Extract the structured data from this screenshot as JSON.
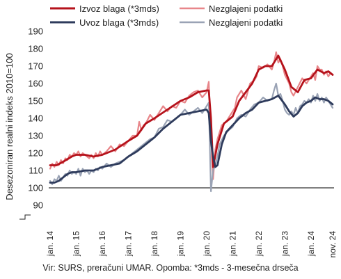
{
  "chart_data": {
    "type": "line",
    "ylabel": "Desezoniran realni indeks 2010=100",
    "ylim": [
      80,
      190
    ],
    "yticks": [
      90,
      100,
      110,
      120,
      130,
      140,
      150,
      160,
      170,
      180,
      190
    ],
    "x_tick_labels": [
      "jan. 14",
      "jan. 15",
      "jan. 16",
      "jan. 17",
      "jan. 18",
      "jan. 19",
      "jan. 20",
      "jan. 21",
      "jan. 22",
      "jan. 23",
      "jan. 24",
      "nov. 24"
    ],
    "x_tick_months": [
      0,
      12,
      24,
      36,
      48,
      60,
      72,
      84,
      96,
      108,
      120,
      130
    ],
    "reference_line": 100,
    "legend_position": "top",
    "colors": {
      "export_3mds": "#b5121b",
      "export_raw": "#e8868a",
      "import_3mds": "#2e3b5c",
      "import_raw": "#9aa3b5",
      "reference": "#000000"
    },
    "series": [
      {
        "name": "Izvoz blaga (*3mds)",
        "key": "export_3mds",
        "anchors": [
          [
            0,
            113
          ],
          [
            3,
            113
          ],
          [
            6,
            115
          ],
          [
            10,
            118
          ],
          [
            12,
            119
          ],
          [
            16,
            119
          ],
          [
            20,
            118
          ],
          [
            24,
            119
          ],
          [
            30,
            122
          ],
          [
            36,
            127
          ],
          [
            40,
            130
          ],
          [
            44,
            137
          ],
          [
            48,
            140
          ],
          [
            54,
            145
          ],
          [
            60,
            150
          ],
          [
            64,
            152
          ],
          [
            68,
            155
          ],
          [
            72,
            156
          ],
          [
            73,
            156
          ],
          [
            74,
            140
          ],
          [
            75,
            112
          ],
          [
            77,
            125
          ],
          [
            80,
            137
          ],
          [
            84,
            141
          ],
          [
            87,
            150
          ],
          [
            90,
            155
          ],
          [
            93,
            160
          ],
          [
            96,
            168
          ],
          [
            99,
            170
          ],
          [
            102,
            170
          ],
          [
            105,
            176
          ],
          [
            108,
            168
          ],
          [
            111,
            158
          ],
          [
            114,
            155
          ],
          [
            117,
            162
          ],
          [
            120,
            163
          ],
          [
            123,
            168
          ],
          [
            126,
            166
          ],
          [
            128,
            167
          ],
          [
            130,
            165
          ]
        ]
      },
      {
        "name": "Nezglajeni podatki",
        "key": "export_raw",
        "anchors": [
          [
            0,
            111
          ],
          [
            1,
            114
          ],
          [
            2,
            112
          ],
          [
            3,
            115
          ],
          [
            4,
            113
          ],
          [
            5,
            116
          ],
          [
            6,
            114
          ],
          [
            7,
            117
          ],
          [
            8,
            116
          ],
          [
            9,
            119
          ],
          [
            10,
            118
          ],
          [
            11,
            120
          ],
          [
            12,
            119
          ],
          [
            13,
            121
          ],
          [
            14,
            118
          ],
          [
            15,
            120
          ],
          [
            16,
            119
          ],
          [
            17,
            118
          ],
          [
            18,
            117
          ],
          [
            19,
            119
          ],
          [
            20,
            117
          ],
          [
            21,
            120
          ],
          [
            22,
            118
          ],
          [
            23,
            121
          ],
          [
            24,
            119
          ],
          [
            26,
            121
          ],
          [
            28,
            124
          ],
          [
            30,
            121
          ],
          [
            32,
            125
          ],
          [
            34,
            124
          ],
          [
            36,
            127
          ],
          [
            38,
            130
          ],
          [
            40,
            130
          ],
          [
            41,
            138
          ],
          [
            42,
            133
          ],
          [
            43,
            136
          ],
          [
            44,
            137
          ],
          [
            46,
            142
          ],
          [
            48,
            139
          ],
          [
            50,
            143
          ],
          [
            52,
            147
          ],
          [
            54,
            144
          ],
          [
            56,
            147
          ],
          [
            58,
            146
          ],
          [
            60,
            150
          ],
          [
            62,
            149
          ],
          [
            64,
            153
          ],
          [
            66,
            155
          ],
          [
            68,
            156
          ],
          [
            70,
            152
          ],
          [
            72,
            155
          ],
          [
            73,
            161
          ],
          [
            74,
            130
          ],
          [
            75,
            105
          ],
          [
            76,
            122
          ],
          [
            77,
            128
          ],
          [
            79,
            136
          ],
          [
            81,
            138
          ],
          [
            83,
            142
          ],
          [
            85,
            146
          ],
          [
            86,
            152
          ],
          [
            88,
            156
          ],
          [
            90,
            151
          ],
          [
            92,
            160
          ],
          [
            94,
            162
          ],
          [
            95,
            164
          ],
          [
            96,
            170
          ],
          [
            98,
            169
          ],
          [
            100,
            171
          ],
          [
            102,
            168
          ],
          [
            103,
            172
          ],
          [
            104,
            178
          ],
          [
            105,
            172
          ],
          [
            106,
            174
          ],
          [
            107,
            170
          ],
          [
            108,
            165
          ],
          [
            110,
            160
          ],
          [
            111,
            155
          ],
          [
            112,
            153
          ],
          [
            114,
            158
          ],
          [
            116,
            163
          ],
          [
            118,
            160
          ],
          [
            120,
            164
          ],
          [
            121,
            166
          ],
          [
            122,
            162
          ],
          [
            123,
            170
          ],
          [
            124,
            168
          ],
          [
            125,
            168
          ],
          [
            126,
            165
          ],
          [
            127,
            167
          ],
          [
            128,
            164
          ],
          [
            129,
            166
          ],
          [
            130,
            165
          ]
        ]
      },
      {
        "name": "Uvoz blaga (*3mds)",
        "key": "import_3mds",
        "anchors": [
          [
            0,
            103
          ],
          [
            2,
            103
          ],
          [
            4,
            104
          ],
          [
            6,
            106
          ],
          [
            8,
            108
          ],
          [
            10,
            109
          ],
          [
            12,
            109
          ],
          [
            16,
            110
          ],
          [
            20,
            110
          ],
          [
            24,
            112
          ],
          [
            28,
            113
          ],
          [
            32,
            114
          ],
          [
            36,
            118
          ],
          [
            40,
            121
          ],
          [
            44,
            125
          ],
          [
            48,
            129
          ],
          [
            52,
            134
          ],
          [
            56,
            138
          ],
          [
            60,
            142
          ],
          [
            64,
            143
          ],
          [
            68,
            144
          ],
          [
            72,
            145
          ],
          [
            73,
            143
          ],
          [
            74,
            127
          ],
          [
            75,
            118
          ],
          [
            76,
            112
          ],
          [
            77,
            113
          ],
          [
            79,
            125
          ],
          [
            81,
            132
          ],
          [
            84,
            136
          ],
          [
            87,
            140
          ],
          [
            90,
            143
          ],
          [
            93,
            145
          ],
          [
            96,
            149
          ],
          [
            99,
            150
          ],
          [
            102,
            151
          ],
          [
            105,
            153
          ],
          [
            108,
            148
          ],
          [
            110,
            144
          ],
          [
            112,
            141
          ],
          [
            114,
            143
          ],
          [
            116,
            147
          ],
          [
            118,
            149
          ],
          [
            120,
            150
          ],
          [
            122,
            152
          ],
          [
            124,
            151
          ],
          [
            126,
            151
          ],
          [
            128,
            150
          ],
          [
            130,
            148
          ]
        ]
      },
      {
        "name": "Nezglajeni podatki",
        "key": "import_raw",
        "anchors": [
          [
            0,
            104
          ],
          [
            1,
            102
          ],
          [
            2,
            105
          ],
          [
            3,
            104
          ],
          [
            4,
            107
          ],
          [
            5,
            104
          ],
          [
            6,
            106
          ],
          [
            7,
            108
          ],
          [
            8,
            107
          ],
          [
            9,
            110
          ],
          [
            10,
            108
          ],
          [
            11,
            109
          ],
          [
            12,
            108
          ],
          [
            13,
            111
          ],
          [
            14,
            107
          ],
          [
            15,
            111
          ],
          [
            16,
            109
          ],
          [
            17,
            110
          ],
          [
            18,
            108
          ],
          [
            19,
            110
          ],
          [
            20,
            109
          ],
          [
            21,
            111
          ],
          [
            22,
            110
          ],
          [
            23,
            112
          ],
          [
            24,
            111
          ],
          [
            26,
            114
          ],
          [
            28,
            112
          ],
          [
            30,
            114
          ],
          [
            32,
            115
          ],
          [
            34,
            116
          ],
          [
            36,
            118
          ],
          [
            38,
            120
          ],
          [
            40,
            122
          ],
          [
            42,
            124
          ],
          [
            44,
            126
          ],
          [
            46,
            128
          ],
          [
            48,
            129
          ],
          [
            50,
            134
          ],
          [
            52,
            135
          ],
          [
            54,
            139
          ],
          [
            56,
            138
          ],
          [
            58,
            140
          ],
          [
            60,
            142
          ],
          [
            62,
            145
          ],
          [
            64,
            142
          ],
          [
            66,
            144
          ],
          [
            68,
            146
          ],
          [
            70,
            143
          ],
          [
            72,
            147
          ],
          [
            73,
            149
          ],
          [
            74,
            98
          ],
          [
            75,
            110
          ],
          [
            76,
            113
          ],
          [
            77,
            118
          ],
          [
            78,
            125
          ],
          [
            80,
            130
          ],
          [
            82,
            133
          ],
          [
            84,
            135
          ],
          [
            86,
            140
          ],
          [
            88,
            142
          ],
          [
            90,
            141
          ],
          [
            92,
            145
          ],
          [
            94,
            148
          ],
          [
            96,
            149
          ],
          [
            98,
            152
          ],
          [
            100,
            150
          ],
          [
            102,
            151
          ],
          [
            103,
            156
          ],
          [
            104,
            160
          ],
          [
            105,
            153
          ],
          [
            106,
            154
          ],
          [
            107,
            150
          ],
          [
            108,
            145
          ],
          [
            109,
            143
          ],
          [
            110,
            142
          ],
          [
            111,
            144
          ],
          [
            112,
            142
          ],
          [
            113,
            146
          ],
          [
            114,
            143
          ],
          [
            115,
            147
          ],
          [
            116,
            148
          ],
          [
            117,
            150
          ],
          [
            118,
            149
          ],
          [
            119,
            151
          ],
          [
            120,
            149
          ],
          [
            121,
            153
          ],
          [
            122,
            150
          ],
          [
            123,
            154
          ],
          [
            124,
            150
          ],
          [
            125,
            152
          ],
          [
            126,
            149
          ],
          [
            127,
            152
          ],
          [
            128,
            150
          ],
          [
            129,
            148
          ],
          [
            130,
            146
          ]
        ]
      }
    ]
  },
  "source_text": "Vir: SURS, preračuni UMAR. Opomba: *3mds - 3-mesečna drseča"
}
